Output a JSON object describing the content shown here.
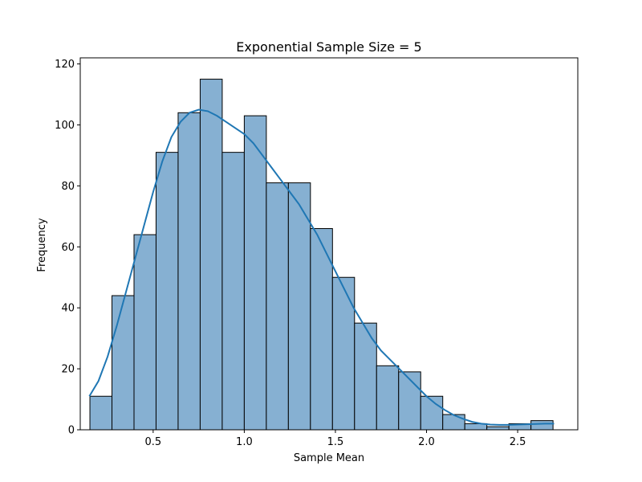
{
  "chart_data": {
    "type": "bar",
    "subtype": "histogram-with-kde",
    "title": "Exponential Sample Size = 5",
    "xlabel": "Sample Mean",
    "ylabel": "Frequency",
    "xlim": [
      0.1,
      2.83
    ],
    "ylim": [
      0,
      122
    ],
    "xticks": [
      0.5,
      1.0,
      1.5,
      2.0,
      2.5
    ],
    "xtick_labels": [
      "0.5",
      "1.0",
      "1.5",
      "2.0",
      "2.5"
    ],
    "yticks": [
      0,
      20,
      40,
      60,
      80,
      100,
      120
    ],
    "ytick_labels": [
      "0",
      "20",
      "40",
      "60",
      "80",
      "100",
      "120"
    ],
    "bin_edges": [
      0.153,
      0.274,
      0.395,
      0.516,
      0.637,
      0.758,
      0.879,
      1.0,
      1.121,
      1.242,
      1.363,
      1.484,
      1.605,
      1.726,
      1.847,
      1.968,
      2.089,
      2.21,
      2.331,
      2.452,
      2.573,
      2.694
    ],
    "values": [
      11,
      44,
      64,
      91,
      104,
      115,
      91,
      103,
      81,
      81,
      66,
      50,
      35,
      21,
      19,
      11,
      5,
      2,
      1,
      2,
      3
    ],
    "kde": {
      "x": [
        0.15,
        0.2,
        0.25,
        0.3,
        0.35,
        0.4,
        0.45,
        0.5,
        0.55,
        0.6,
        0.65,
        0.7,
        0.75,
        0.8,
        0.85,
        0.9,
        0.95,
        1.0,
        1.05,
        1.1,
        1.15,
        1.2,
        1.25,
        1.3,
        1.35,
        1.4,
        1.45,
        1.5,
        1.55,
        1.6,
        1.65,
        1.7,
        1.75,
        1.8,
        1.85,
        1.9,
        1.95,
        2.0,
        2.05,
        2.1,
        2.15,
        2.2,
        2.25,
        2.3,
        2.35,
        2.4,
        2.45,
        2.5,
        2.55,
        2.6,
        2.65,
        2.7
      ],
      "y": [
        11,
        16,
        24,
        34,
        45,
        56,
        67,
        78,
        88,
        96,
        101,
        104,
        105,
        104.5,
        103,
        101,
        99,
        97,
        94,
        90,
        86,
        82,
        78,
        74,
        69,
        64,
        58,
        52,
        46,
        40,
        35,
        30,
        26,
        23,
        20,
        17,
        14,
        11,
        8.5,
        6.5,
        4.8,
        3.6,
        2.6,
        2,
        1.7,
        1.6,
        1.6,
        1.7,
        1.8,
        1.9,
        2,
        2
      ]
    },
    "bar_fill": "#86b0d2",
    "bar_edge": "#000000",
    "kde_color": "#1f77b4",
    "grid": false,
    "legend": "none"
  }
}
